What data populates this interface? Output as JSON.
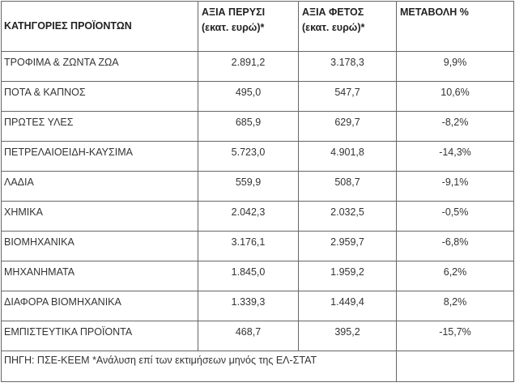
{
  "table": {
    "header": [
      [
        "ΚΑΤΗΓΟΡΙΕΣ ΠΡΟΪΟΝΤΩΝ"
      ],
      [
        "ΑΞΙΑ ΠΕΡΥΣΙ",
        "(εκατ. ευρώ)*"
      ],
      [
        "ΑΞΙΑ ΦΕΤΟΣ",
        "(εκατ. ευρώ)*"
      ],
      [
        "ΜΕΤΑΒΟΛΗ %"
      ]
    ],
    "rows": [
      [
        "ΤΡΟΦΙΜΑ & ΖΩΝΤΑ ΖΩΑ",
        "2.891,2",
        "3.178,3",
        "9,9%"
      ],
      [
        "ΠΟΤΑ & ΚΑΠΝΟΣ",
        "495,0",
        "547,7",
        "10,6%"
      ],
      [
        "ΠΡΩΤΕΣ ΥΛΕΣ",
        "685,9",
        "629,7",
        "-8,2%"
      ],
      [
        "ΠΕΤΡΕΛΑΙΟΕΙΔΗ-ΚΑΥΣΙΜΑ",
        "5.723,0",
        "4.901,8",
        "-14,3%"
      ],
      [
        "ΛΑΔΙΑ",
        "559,9",
        "508,7",
        "-9,1%"
      ],
      [
        "ΧΗΜΙΚΑ",
        "2.042,3",
        "2.032,5",
        "-0,5%"
      ],
      [
        "ΒΙΟΜΗΧΑΝΙΚΑ",
        "3.176,1",
        "2.959,7",
        "-6,8%"
      ],
      [
        "ΜΗΧΑΝΗΜΑΤΑ",
        "1.845,0",
        "1.959,2",
        "6,2%"
      ],
      [
        "ΔΙΑΦΟΡΑ ΒΙΟΜΗΧΑΝΙΚΑ",
        "1.339,3",
        "1.449,4",
        "8,2%"
      ],
      [
        "ΕΜΠΙΣΤΕΥΤΙΚΑ ΠΡΟΪΟΝΤΑ",
        "468,7",
        "395,2",
        "-15,7%"
      ]
    ],
    "footer": "ΠΗΓΗ: ΠΣΕ-ΚΕΕΜ *Ανάλυση επί των εκτιμήσεων μηνός της ΕΛ-ΣΤΑΤ"
  }
}
